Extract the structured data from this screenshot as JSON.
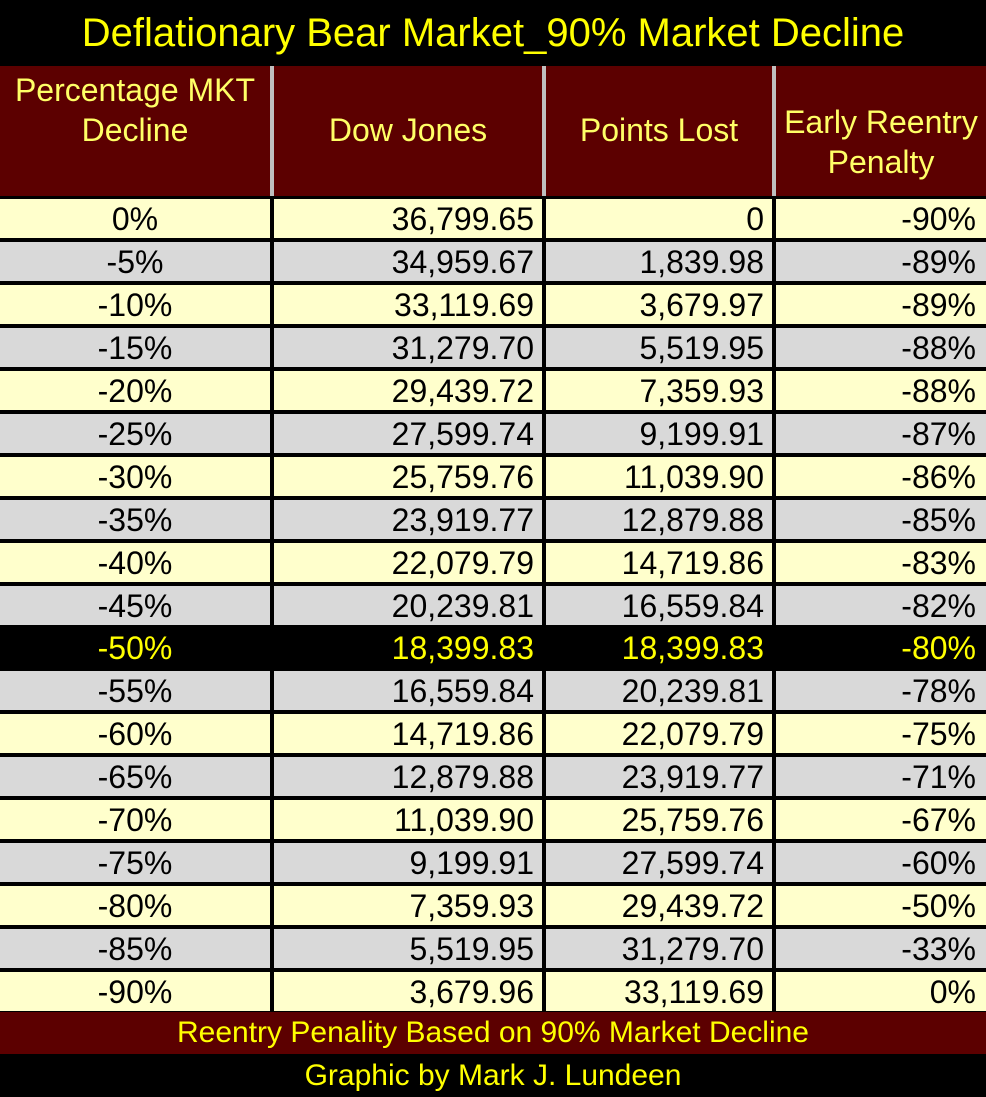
{
  "chart_data": {
    "type": "table",
    "title": "Deflationary Bear Market_90% Market Decline",
    "columns": [
      "Percentage MKT Decline",
      "Dow Jones",
      "Points Lost",
      "Early Reentry Penalty"
    ],
    "rows": [
      [
        "0%",
        "36,799.65",
        "0",
        "-90%"
      ],
      [
        "-5%",
        "34,959.67",
        "1,839.98",
        "-89%"
      ],
      [
        "-10%",
        "33,119.69",
        "3,679.97",
        "-89%"
      ],
      [
        "-15%",
        "31,279.70",
        "5,519.95",
        "-88%"
      ],
      [
        "-20%",
        "29,439.72",
        "7,359.93",
        "-88%"
      ],
      [
        "-25%",
        "27,599.74",
        "9,199.91",
        "-87%"
      ],
      [
        "-30%",
        "25,759.76",
        "11,039.90",
        "-86%"
      ],
      [
        "-35%",
        "23,919.77",
        "12,879.88",
        "-85%"
      ],
      [
        "-40%",
        "22,079.79",
        "14,719.86",
        "-83%"
      ],
      [
        "-45%",
        "20,239.81",
        "16,559.84",
        "-82%"
      ],
      [
        "-50%",
        "18,399.83",
        "18,399.83",
        "-80%"
      ],
      [
        "-55%",
        "16,559.84",
        "20,239.81",
        "-78%"
      ],
      [
        "-60%",
        "14,719.86",
        "22,079.79",
        "-75%"
      ],
      [
        "-65%",
        "12,879.88",
        "23,919.77",
        "-71%"
      ],
      [
        "-70%",
        "11,039.90",
        "25,759.76",
        "-67%"
      ],
      [
        "-75%",
        "9,199.91",
        "27,599.74",
        "-60%"
      ],
      [
        "-80%",
        "7,359.93",
        "29,439.72",
        "-50%"
      ],
      [
        "-85%",
        "5,519.95",
        "31,279.70",
        "-33%"
      ],
      [
        "-90%",
        "3,679.96",
        "33,119.69",
        "0%"
      ]
    ],
    "highlight_row": 10,
    "footnote": "Reentry Penality Based on 90% Market Decline",
    "credit": "Graphic by Mark J. Lundeen"
  },
  "colors": {
    "title_text": "#ffff00",
    "header_bg": "#5c0000",
    "header_text": "#ffff66",
    "row_light": "#ffffcc",
    "row_gray": "#d9d9d9",
    "highlight_bg": "#000000",
    "highlight_text": "#ffff00",
    "footer_bg": "#5c0000"
  }
}
